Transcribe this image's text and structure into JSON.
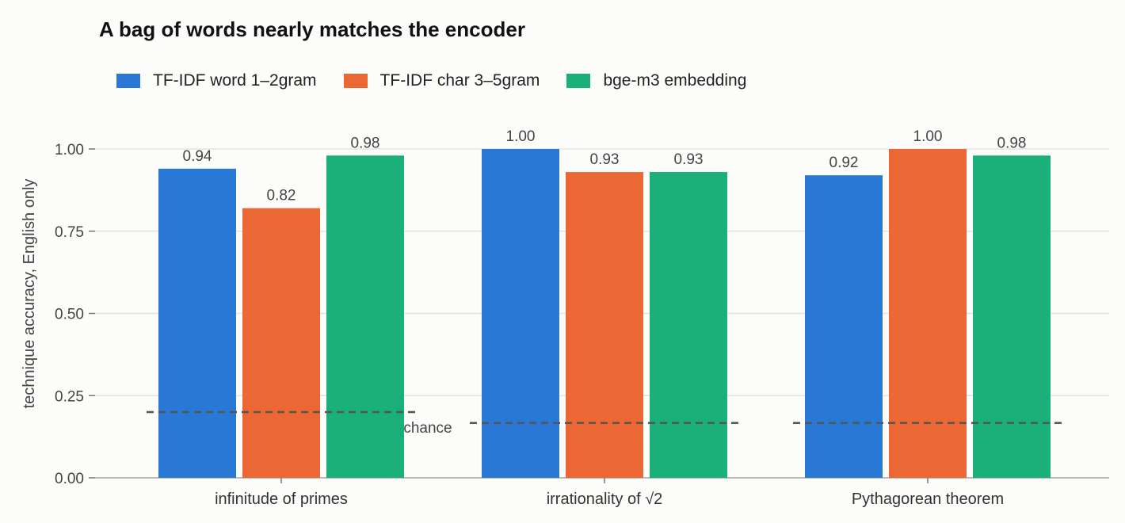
{
  "chart_data": {
    "type": "bar",
    "title": "A bag of words nearly matches the encoder",
    "ylabel": "technique accuracy, English only",
    "xlabel": "",
    "ylim": [
      0,
      1.05
    ],
    "yticks": [
      0.0,
      0.25,
      0.5,
      0.75,
      1.0
    ],
    "ytick_labels": [
      "0.00",
      "0.25",
      "0.50",
      "0.75",
      "1.00"
    ],
    "grid": true,
    "legend_position": "top-left",
    "categories": [
      "infinitude of primes",
      "irrationality of √2",
      "Pythagorean theorem"
    ],
    "series": [
      {
        "name": "TF-IDF word 1–2gram",
        "color": "#2a78d6",
        "values": [
          0.94,
          1.0,
          0.92
        ],
        "labels": [
          "0.94",
          "1.00",
          "0.92"
        ]
      },
      {
        "name": "TF-IDF char 3–5gram",
        "color": "#eb6834",
        "values": [
          0.82,
          0.93,
          1.0
        ],
        "labels": [
          "0.82",
          "0.93",
          "1.00"
        ]
      },
      {
        "name": "bge-m3 embedding",
        "color": "#1baf7a",
        "values": [
          0.98,
          0.93,
          0.98
        ],
        "labels": [
          "0.98",
          "0.93",
          "0.98"
        ]
      }
    ],
    "chance": {
      "label": "chance",
      "values": [
        0.2,
        0.167,
        0.167
      ]
    }
  }
}
